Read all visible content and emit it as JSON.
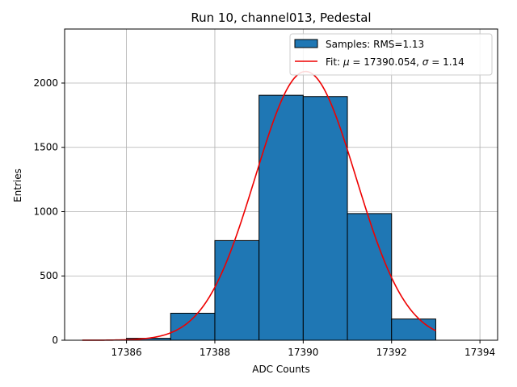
{
  "chart_data": {
    "type": "bar",
    "title": "Run 10, channel013, Pedestal",
    "xlabel": "ADC Counts",
    "ylabel": "Entries",
    "xlim": [
      17384.6,
      17394.4
    ],
    "ylim": [
      0,
      2420
    ],
    "xticks": [
      17386,
      17388,
      17390,
      17392,
      17394
    ],
    "yticks": [
      0,
      500,
      1000,
      1500,
      2000
    ],
    "grid": true,
    "legend_position": "top-right",
    "bar_color": "#1f77b4",
    "fit_color": "#ee0000",
    "bins": [
      {
        "x0": 17386,
        "x1": 17387,
        "value": 15
      },
      {
        "x0": 17387,
        "x1": 17388,
        "value": 210
      },
      {
        "x0": 17388,
        "x1": 17389,
        "value": 775
      },
      {
        "x0": 17389,
        "x1": 17390,
        "value": 1905
      },
      {
        "x0": 17390,
        "x1": 17391,
        "value": 1895
      },
      {
        "x0": 17391,
        "x1": 17392,
        "value": 985
      },
      {
        "x0": 17392,
        "x1": 17393,
        "value": 165
      }
    ],
    "fit": {
      "mu": 17390.054,
      "sigma": 1.14,
      "amplitude": 2090,
      "x_range": [
        17385,
        17393
      ]
    },
    "legend": {
      "samples_label": "Samples: RMS=1.13",
      "fit_label_prefix": "Fit: ",
      "fit_mu_symbol": "μ",
      "fit_mu_value": " = 17390.054, ",
      "fit_sigma_symbol": "σ",
      "fit_sigma_value": " = 1.14"
    }
  }
}
